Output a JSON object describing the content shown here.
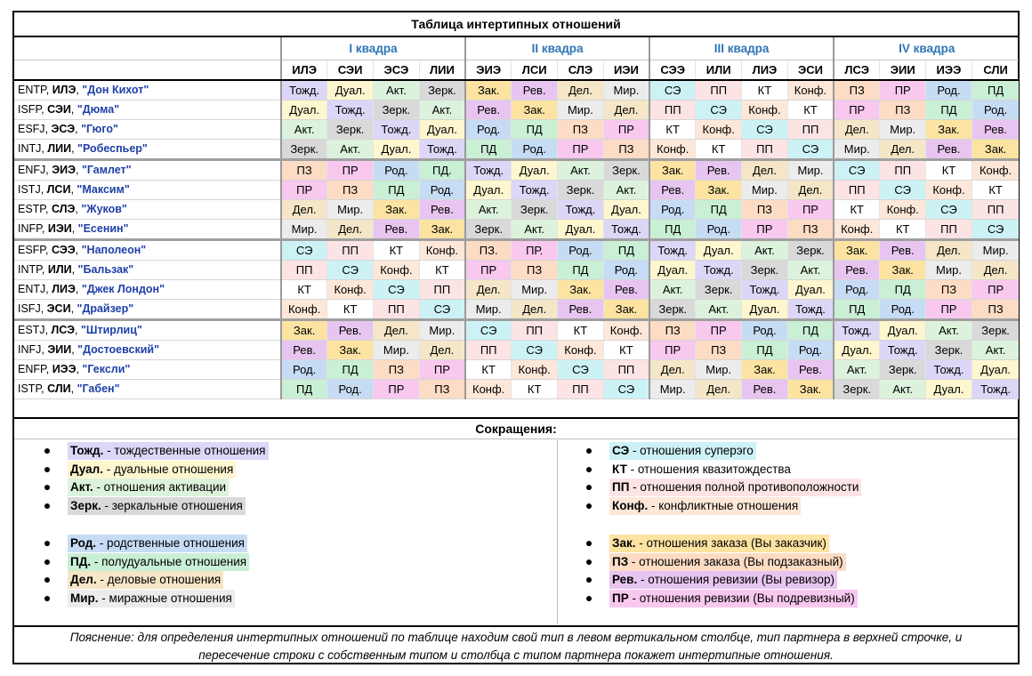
{
  "title": "Таблица интертипных отношений",
  "quadras": [
    "I квадра",
    "II квадра",
    "III квадра",
    "IV квадра"
  ],
  "col_headers": [
    "ИЛЭ",
    "СЭИ",
    "ЭСЭ",
    "ЛИИ",
    "ЭИЭ",
    "ЛСИ",
    "СЛЭ",
    "ИЭИ",
    "СЭЭ",
    "ИЛИ",
    "ЛИЭ",
    "ЭСИ",
    "ЛСЭ",
    "ЭИИ",
    "ИЭЭ",
    "СЛИ"
  ],
  "colors": {
    "Тожд.": "#dcd6f7",
    "Дуал.": "#fdf6cf",
    "Акт.": "#dcf2dc",
    "Зерк.": "#d9d9d9",
    "Род.": "#c6dcf5",
    "ПД": "#c9efd4",
    "ПД.": "#c9efd4",
    "Дел.": "#f4e6c6",
    "Мир.": "#ececec",
    "СЭ": "#cdf2f6",
    "КТ": "#ffffff",
    "ПП": "#fde4e4",
    "Конф.": "#fde7d8",
    "Зак.": "#fce3a2",
    "ПЗ": "#fcdcc4",
    "ПЗ.": "#fcdcc4",
    "Рев.": "#e8c5f0",
    "ПР": "#f8c8ef",
    "ПР.": "#f8c8ef",
    "header": "#2e75b6",
    "names": "#1f3fa8"
  },
  "rows": [
    {
      "mbti": "ENTP",
      "soc": "ИЛЭ",
      "name": "\"Дон Кихот\"",
      "cells": [
        "Тожд.",
        "Дуал.",
        "Акт.",
        "Зерк.",
        "Зак.",
        "Рев.",
        "Дел.",
        "Мир.",
        "СЭ",
        "ПП",
        "КТ",
        "Конф.",
        "ПЗ",
        "ПР",
        "Род.",
        "ПД"
      ]
    },
    {
      "mbti": "ISFP",
      "soc": "СЭИ",
      "name": "\"Дюма\"",
      "cells": [
        "Дуал.",
        "Тожд.",
        "Зерк.",
        "Акт.",
        "Рев.",
        "Зак.",
        "Мир.",
        "Дел.",
        "ПП",
        "СЭ",
        "Конф.",
        "КТ",
        "ПР",
        "ПЗ",
        "ПД",
        "Род."
      ]
    },
    {
      "mbti": "ESFJ",
      "soc": "ЭСЭ",
      "name": "\"Гюго\"",
      "cells": [
        "Акт.",
        "Зерк.",
        "Тожд.",
        "Дуал.",
        "Род.",
        "ПД",
        "ПЗ",
        "ПР",
        "КТ",
        "Конф.",
        "СЭ",
        "ПП",
        "Дел.",
        "Мир.",
        "Зак.",
        "Рев."
      ]
    },
    {
      "mbti": "INTJ",
      "soc": "ЛИИ",
      "name": "\"Робеспьер\"",
      "cells": [
        "Зерк.",
        "Акт.",
        "Дуал.",
        "Тожд.",
        "ПД",
        "Род.",
        "ПР",
        "ПЗ",
        "Конф.",
        "КТ",
        "ПП",
        "СЭ",
        "Мир.",
        "Дел.",
        "Рев.",
        "Зак."
      ]
    },
    {
      "mbti": "ENFJ",
      "soc": "ЭИЭ",
      "name": "\"Гамлет\"",
      "cells": [
        "ПЗ",
        "ПР",
        "Род.",
        "ПД.",
        "Тожд.",
        "Дуал.",
        "Акт.",
        "Зерк.",
        "Зак.",
        "Рев.",
        "Дел.",
        "Мир.",
        "СЭ",
        "ПП",
        "КТ",
        "Конф."
      ]
    },
    {
      "mbti": "ISTJ",
      "soc": "ЛСИ",
      "name": "\"Максим\"",
      "cells": [
        "ПР",
        "ПЗ",
        "ПД",
        "Род.",
        "Дуал.",
        "Тожд.",
        "Зерк.",
        "Акт.",
        "Рев.",
        "Зак.",
        "Мир.",
        "Дел.",
        "ПП",
        "СЭ",
        "Конф.",
        "КТ"
      ]
    },
    {
      "mbti": "ESTP",
      "soc": "СЛЭ",
      "name": "\"Жуков\"",
      "cells": [
        "Дел.",
        "Мир.",
        "Зак.",
        "Рев.",
        "Акт.",
        "Зерк.",
        "Тожд.",
        "Дуал.",
        "Род.",
        "ПД",
        "ПЗ",
        "ПР",
        "КТ",
        "Конф.",
        "СЭ",
        "ПП"
      ]
    },
    {
      "mbti": "INFP",
      "soc": "ИЭИ",
      "name": "\"Есенин\"",
      "cells": [
        "Мир.",
        "Дел.",
        "Рев.",
        "Зак.",
        "Зерк.",
        "Акт.",
        "Дуал.",
        "Тожд.",
        "ПД",
        "Род.",
        "ПР",
        "ПЗ",
        "Конф.",
        "КТ",
        "ПП",
        "СЭ"
      ]
    },
    {
      "mbti": "ESFP",
      "soc": "СЭЭ",
      "name": "\"Наполеон\"",
      "cells": [
        "СЭ",
        "ПП",
        "КТ",
        "Конф.",
        "ПЗ.",
        "ПР.",
        "Род.",
        "ПД",
        "Тожд.",
        "Дуал.",
        "Акт.",
        "Зерк.",
        "Зак.",
        "Рев.",
        "Дел.",
        "Мир."
      ]
    },
    {
      "mbti": "INTP",
      "soc": "ИЛИ",
      "name": "\"Бальзак\"",
      "cells": [
        "ПП",
        "СЭ",
        "Конф.",
        "КТ",
        "ПР",
        "ПЗ",
        "ПД",
        "Род.",
        "Дуал.",
        "Тожд.",
        "Зерк.",
        "Акт.",
        "Рев.",
        "Зак.",
        "Мир.",
        "Дел."
      ]
    },
    {
      "mbti": "ENTJ",
      "soc": "ЛИЭ",
      "name": "\"Джек Лондон\"",
      "cells": [
        "КТ",
        "Конф.",
        "СЭ",
        "ПП",
        "Дел.",
        "Мир.",
        "Зак.",
        "Рев.",
        "Акт.",
        "Зерк.",
        "Тожд.",
        "Дуал.",
        "Род.",
        "ПД",
        "ПЗ",
        "ПР"
      ]
    },
    {
      "mbti": "ISFJ",
      "soc": "ЭСИ",
      "name": "\"Драйзер\"",
      "cells": [
        "Конф.",
        "КТ",
        "ПП",
        "СЭ",
        "Мир.",
        "Дел.",
        "Рев.",
        "Зак.",
        "Зерк.",
        "Акт.",
        "Дуал.",
        "Тожд.",
        "ПД",
        "Род.",
        "ПР",
        "ПЗ"
      ]
    },
    {
      "mbti": "ESTJ",
      "soc": "ЛСЭ",
      "name": "\"Штирлиц\"",
      "cells": [
        "Зак.",
        "Рев.",
        "Дел.",
        "Мир.",
        "СЭ",
        "ПП",
        "КТ",
        "Конф.",
        "ПЗ",
        "ПР",
        "Род.",
        "ПД",
        "Тожд.",
        "Дуал.",
        "Акт.",
        "Зерк."
      ]
    },
    {
      "mbti": "INFJ",
      "soc": "ЭИИ",
      "name": "\"Достоевский\"",
      "cells": [
        "Рев.",
        "Зак.",
        "Мир.",
        "Дел.",
        "ПП",
        "СЭ",
        "Конф.",
        "КТ",
        "ПР",
        "ПЗ",
        "ПД",
        "Род.",
        "Дуал.",
        "Тожд.",
        "Зерк.",
        "Акт."
      ]
    },
    {
      "mbti": "ENFP",
      "soc": "ИЭЭ",
      "name": "\"Гексли\"",
      "cells": [
        "Род.",
        "ПД",
        "ПЗ",
        "ПР",
        "КТ",
        "Конф.",
        "СЭ",
        "ПП",
        "Дел.",
        "Мир.",
        "Зак.",
        "Рев.",
        "Акт.",
        "Зерк.",
        "Тожд.",
        "Дуал."
      ]
    },
    {
      "mbti": "ISTP",
      "soc": "СЛИ",
      "name": "\"Габен\"",
      "cells": [
        "ПД",
        "Род.",
        "ПР",
        "ПЗ",
        "Конф.",
        "КТ",
        "ПП",
        "СЭ",
        "Мир.",
        "Дел.",
        "Рев.",
        "Зак.",
        "Зерк.",
        "Акт.",
        "Дуал.",
        "Тожд."
      ]
    }
  ],
  "legend": {
    "title": "Сокращения:",
    "left": [
      {
        "abbr": "Тожд.",
        "text": " - тождественные отношения",
        "color": "#dcd6f7"
      },
      {
        "abbr": "Дуал.",
        "text": " - дуальные отношения",
        "color": "#fdf6cf"
      },
      {
        "abbr": "Акт.",
        "text": " - отношения активации",
        "color": "#dcf2dc"
      },
      {
        "abbr": "Зерк.",
        "text": " - зеркальные отношения",
        "color": "#d9d9d9"
      },
      {
        "abbr": "Род.",
        "text": " - родственные отношения",
        "color": "#c6dcf5"
      },
      {
        "abbr": "ПД.",
        "text": " - полудуальные отношения",
        "color": "#c9efd4"
      },
      {
        "abbr": "Дел.",
        "text": " - деловые отношения",
        "color": "#f4e6c6"
      },
      {
        "abbr": "Мир.",
        "text": " - миражные отношения",
        "color": "#ececec"
      }
    ],
    "right": [
      {
        "abbr": "СЭ",
        "text": " - отношения суперэго",
        "color": "#cdf2f6"
      },
      {
        "abbr": "КТ",
        "text": " - отношения квазитождества",
        "color": "#ffffff"
      },
      {
        "abbr": "ПП",
        "text": " - отношения полной противоположности",
        "color": "#fde4e4"
      },
      {
        "abbr": "Конф.",
        "text": " - конфликтные отношения",
        "color": "#fde7d8"
      },
      {
        "abbr": "Зак.",
        "text": " - отношения заказа (Вы заказчик)",
        "color": "#fce3a2"
      },
      {
        "abbr": "ПЗ",
        "text": " - отношения заказа (Вы подзаказный)",
        "color": "#fcdcc4"
      },
      {
        "abbr": "Рев.",
        "text": " - отношения ревизии (Вы ревизор)",
        "color": "#e8c5f0"
      },
      {
        "abbr": "ПР",
        "text": " - отношения ревизии (Вы подревизный)",
        "color": "#f8c8ef"
      }
    ]
  },
  "note_line1": "Пояснение: для определения интертипных отношений по таблице находим свой тип в левом вертикальном столбце, тип партнера в верхней строчке, и",
  "note_line2": "пересечение строки с собственным типом и столбца с типом партнера покажет интертипные отношения."
}
